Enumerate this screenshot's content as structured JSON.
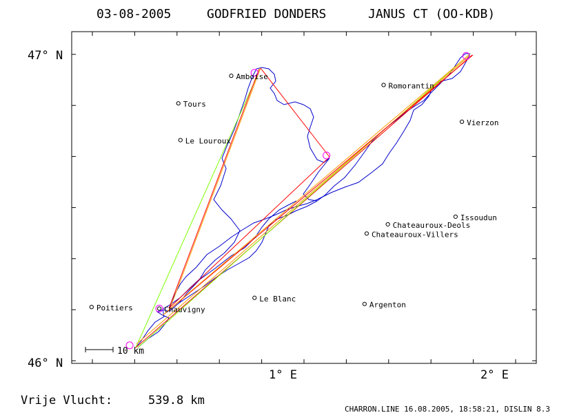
{
  "header": {
    "date": "03-08-2005",
    "pilot": "GODFRIED DONDERS",
    "glider": "JANUS CT (OO-KDB)"
  },
  "axes": {
    "lat_top_label": "47° N",
    "lat_bottom_label": "46° N",
    "lon_1_label": "1° E",
    "lon_2_label": "2° E"
  },
  "scale_bar": {
    "label": "10 km"
  },
  "footer": {
    "distance_label": "Vrije Vlucht:",
    "distance_value": "539.8 km",
    "credits": "CHARRON.LINE 16.08.2005, 18:58:21, DISLIN 8.3"
  },
  "colors": {
    "track": "#0000cc",
    "course_red": "#ff0000",
    "course_green": "#80ff00",
    "course_orange": "#ff9900",
    "turnpoint": "#ff00ff"
  },
  "cities": [
    {
      "name": "Amboise",
      "lat": 46.93,
      "lon": 0.78
    },
    {
      "name": "Tours",
      "lat": 46.84,
      "lon": 0.53
    },
    {
      "name": "Le Louroux",
      "lat": 46.72,
      "lon": 0.54
    },
    {
      "name": "Romorantin",
      "lat": 46.9,
      "lon": 1.5
    },
    {
      "name": "Vierzon",
      "lat": 46.78,
      "lon": 1.87
    },
    {
      "name": "Issoudun",
      "lat": 46.47,
      "lon": 1.84
    },
    {
      "name": "Chateauroux-Deols",
      "lat": 46.445,
      "lon": 1.52
    },
    {
      "name": "Chateauroux-Villers",
      "lat": 46.415,
      "lon": 1.42
    },
    {
      "name": "Le Blanc",
      "lat": 46.205,
      "lon": 0.89
    },
    {
      "name": "Argenton",
      "lat": 46.185,
      "lon": 1.41
    },
    {
      "name": "Poitiers",
      "lat": 46.175,
      "lon": 0.12
    },
    {
      "name": "Chauvigny",
      "lat": 46.17,
      "lon": 0.44
    }
  ],
  "turnpoints": [
    {
      "lat": 46.05,
      "lon": 0.3
    },
    {
      "lat": 46.17,
      "lon": 0.44
    },
    {
      "lat": 46.94,
      "lon": 0.89
    },
    {
      "lat": 46.67,
      "lon": 1.23
    },
    {
      "lat": 46.995,
      "lon": 1.89
    }
  ]
}
